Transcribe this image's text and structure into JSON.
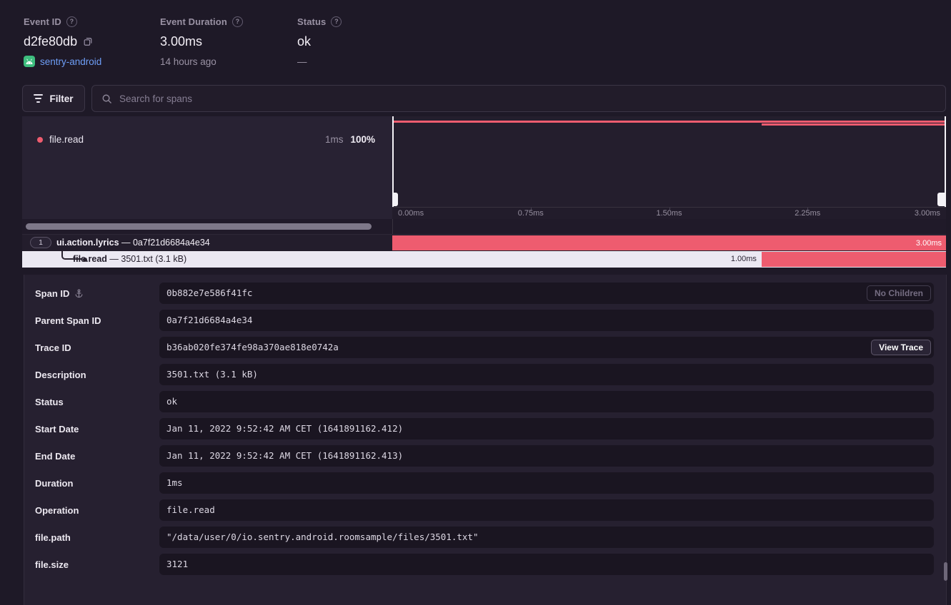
{
  "colors": {
    "accent": "#ee5c6f",
    "selected_row": "#ebe8f2",
    "link": "#6e9ef7",
    "android_green": "#3ebe7e"
  },
  "icons": {
    "help": "?"
  },
  "header": {
    "event_id": {
      "label": "Event ID",
      "value": "d2fe80db",
      "project": "sentry-android"
    },
    "duration": {
      "label": "Event Duration",
      "value": "3.00ms",
      "ago": "14 hours ago"
    },
    "status": {
      "label": "Status",
      "value": "ok",
      "sub": "—"
    }
  },
  "toolbar": {
    "filter": "Filter",
    "search_placeholder": "Search for spans"
  },
  "waterfall": {
    "legend": {
      "op": "file.read",
      "duration": "1ms",
      "percent": "100%"
    },
    "axis_ticks": [
      "0.00ms",
      "0.75ms",
      "1.50ms",
      "2.25ms",
      "3.00ms"
    ],
    "rows": [
      {
        "index": "1",
        "op": "ui.action.lyrics",
        "sep": " — ",
        "desc": "0a7f21d6684a4e34",
        "bar_label": "3.00ms",
        "bar": {
          "start": 0,
          "width": 100
        }
      },
      {
        "op": "file.read",
        "sep": " — ",
        "desc": "3501.txt (3.1 kB)",
        "bar_label": "1.00ms",
        "bar": {
          "start": 66.7,
          "width": 33.3
        }
      }
    ]
  },
  "details": {
    "rows": [
      {
        "label": "Span ID",
        "icon": "anchor",
        "value": "0b882e7e586f41fc",
        "button": {
          "label": "No Children",
          "style": "muted"
        }
      },
      {
        "label": "Parent Span ID",
        "value": "0a7f21d6684a4e34"
      },
      {
        "label": "Trace ID",
        "value": "b36ab020fe374fe98a370ae818e0742a",
        "button": {
          "label": "View Trace",
          "style": "primary"
        }
      },
      {
        "label": "Description",
        "value": "3501.txt (3.1 kB)"
      },
      {
        "label": "Status",
        "value": "ok"
      },
      {
        "label": "Start Date",
        "value": "Jan 11, 2022 9:52:42 AM CET (1641891162.412)"
      },
      {
        "label": "End Date",
        "value": "Jan 11, 2022 9:52:42 AM CET (1641891162.413)"
      },
      {
        "label": "Duration",
        "value": "1ms"
      },
      {
        "label": "Operation",
        "value": "file.read"
      },
      {
        "label": "file.path",
        "value": "\"/data/user/0/io.sentry.android.roomsample/files/3501.txt\""
      },
      {
        "label": "file.size",
        "value": "3121"
      }
    ]
  }
}
